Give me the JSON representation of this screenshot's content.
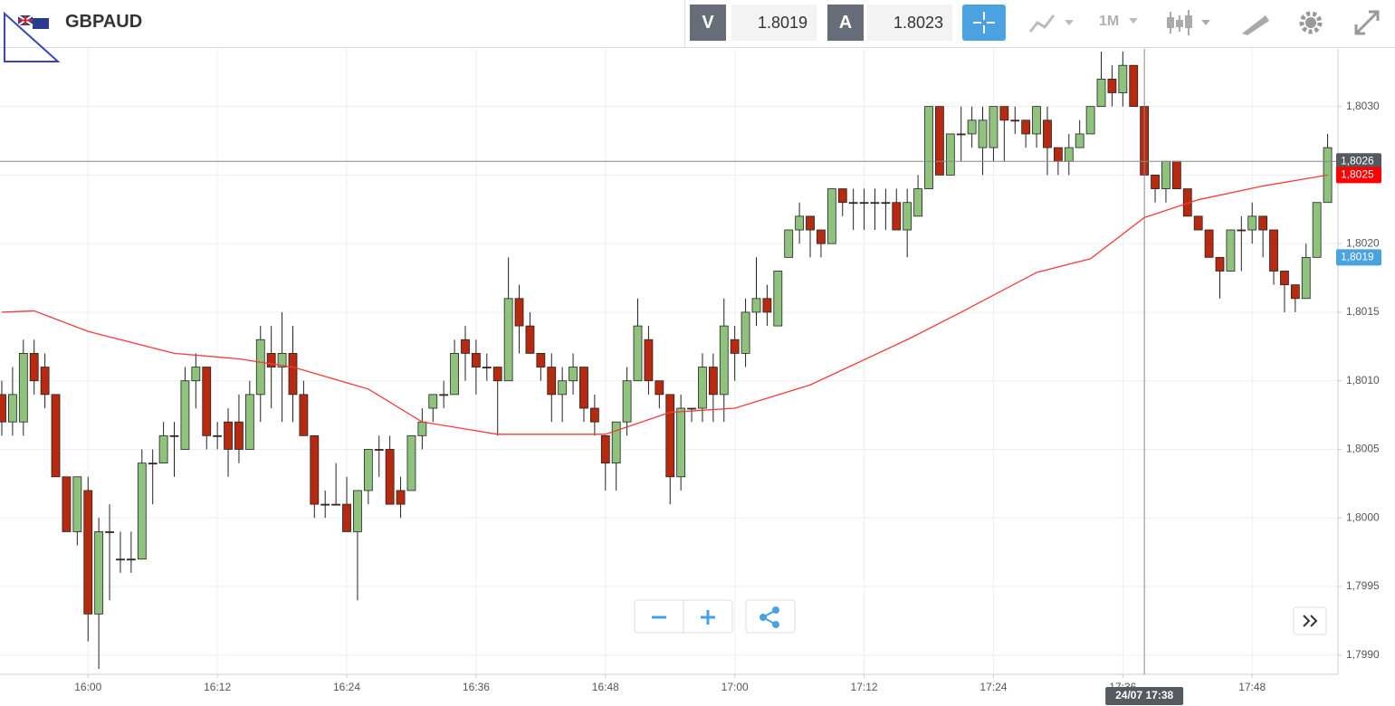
{
  "toolbar": {
    "symbol": "GBPAUD",
    "bid_tag": "V",
    "bid": 1.8019,
    "ask_tag": "A",
    "ask": 1.8023,
    "timeframe": "1M"
  },
  "chart_data": {
    "type": "candlestick",
    "x": [
      "15:52",
      "15:53",
      "15:54",
      "15:55",
      "15:56",
      "15:57",
      "15:58",
      "15:59",
      "16:00",
      "16:01",
      "16:02",
      "16:03",
      "16:04",
      "16:05",
      "16:06",
      "16:07",
      "16:08",
      "16:09",
      "16:10",
      "16:11",
      "16:12",
      "16:13",
      "16:14",
      "16:15",
      "16:16",
      "16:17",
      "16:18",
      "16:19",
      "16:20",
      "16:21",
      "16:22",
      "16:23",
      "16:24",
      "16:25",
      "16:26",
      "16:27",
      "16:28",
      "16:29",
      "16:30",
      "16:31",
      "16:32",
      "16:33",
      "16:34",
      "16:35",
      "16:36",
      "16:37",
      "16:38",
      "16:39",
      "16:40",
      "16:41",
      "16:42",
      "16:43",
      "16:44",
      "16:45",
      "16:46",
      "16:47",
      "16:48",
      "16:49",
      "16:50",
      "16:51",
      "16:52",
      "16:53",
      "16:54",
      "16:55",
      "16:56",
      "16:57",
      "16:58",
      "16:59",
      "17:00",
      "17:01",
      "17:02",
      "17:03",
      "17:04",
      "17:05",
      "17:06",
      "17:07",
      "17:08",
      "17:09",
      "17:10",
      "17:11",
      "17:12",
      "17:13",
      "17:14",
      "17:15",
      "17:16",
      "17:17",
      "17:18",
      "17:19",
      "17:20",
      "17:21",
      "17:22",
      "17:23",
      "17:24",
      "17:25",
      "17:26",
      "17:27",
      "17:28",
      "17:29",
      "17:30",
      "17:31",
      "17:32",
      "17:33",
      "17:34",
      "17:35",
      "17:36",
      "17:37",
      "17:38",
      "17:39",
      "17:40",
      "17:41",
      "17:42",
      "17:43",
      "17:44",
      "17:45",
      "17:46",
      "17:47",
      "17:48",
      "17:49",
      "17:50",
      "17:51",
      "17:52",
      "17:53",
      "17:54",
      "17:55"
    ],
    "open": [
      1.8009,
      1.8007,
      1.8007,
      1.8012,
      1.8011,
      1.8009,
      1.8003,
      1.7999,
      1.8002,
      1.7993,
      1.7999,
      1.7997,
      1.7997,
      1.7997,
      1.8004,
      1.8004,
      1.8006,
      1.8005,
      1.801,
      1.8011,
      1.8006,
      1.8007,
      1.8007,
      1.8005,
      1.8009,
      1.8012,
      1.8011,
      1.8012,
      1.8009,
      1.8006,
      1.8001,
      1.8001,
      1.8001,
      1.7999,
      1.8002,
      1.8005,
      1.8005,
      1.8002,
      1.8002,
      1.8006,
      1.8008,
      1.8009,
      1.8009,
      1.8013,
      1.8012,
      1.8011,
      1.8011,
      1.801,
      1.8016,
      1.8014,
      1.8012,
      1.8011,
      1.8009,
      1.801,
      1.8011,
      1.8008,
      1.8006,
      1.8004,
      1.8007,
      1.801,
      1.8013,
      1.801,
      1.8009,
      1.8003,
      1.8008,
      1.8008,
      1.8011,
      1.8009,
      1.8013,
      1.8012,
      1.8015,
      1.8016,
      1.8014,
      1.8019,
      1.8021,
      1.8022,
      1.8021,
      1.802,
      1.8024,
      1.8023,
      1.8023,
      1.8023,
      1.8023,
      1.8023,
      1.8021,
      1.8022,
      1.8024,
      1.803,
      1.8025,
      1.8028,
      1.8028,
      1.8027,
      1.8027,
      1.803,
      1.8029,
      1.8029,
      1.8028,
      1.8029,
      1.8027,
      1.8026,
      1.8027,
      1.8028,
      1.803,
      1.8032,
      1.8031,
      1.8033,
      1.803,
      1.8025,
      1.8024,
      1.8026,
      1.8024,
      1.8022,
      1.8021,
      1.8019,
      1.8018,
      1.8021,
      1.8021,
      1.8022,
      1.8021,
      1.8018,
      1.8017,
      1.8016,
      1.8019,
      1.8023
    ],
    "high": [
      1.801,
      1.8011,
      1.8013,
      1.8013,
      1.8012,
      1.8009,
      1.8003,
      1.8003,
      1.8003,
      1.8,
      1.8001,
      1.7999,
      1.7999,
      1.8005,
      1.8005,
      1.8007,
      1.8007,
      1.8011,
      1.8012,
      1.8011,
      1.8007,
      1.8008,
      1.8009,
      1.801,
      1.8014,
      1.8014,
      1.8015,
      1.8014,
      1.801,
      1.8006,
      1.8002,
      1.8004,
      1.8003,
      1.8002,
      1.8005,
      1.8006,
      1.8006,
      1.8003,
      1.8006,
      1.8008,
      1.8009,
      1.801,
      1.8013,
      1.8014,
      1.8013,
      1.8012,
      1.8011,
      1.8019,
      1.8017,
      1.8015,
      1.8012,
      1.8012,
      1.8011,
      1.8012,
      1.8011,
      1.8009,
      1.8006,
      1.8007,
      1.8011,
      1.8016,
      1.8014,
      1.801,
      1.8009,
      1.8009,
      1.8008,
      1.8012,
      1.8012,
      1.8016,
      1.8014,
      1.8016,
      1.8019,
      1.8017,
      1.8018,
      1.8021,
      1.8023,
      1.8022,
      1.8021,
      1.8024,
      1.8024,
      1.8024,
      1.8024,
      1.8024,
      1.8024,
      1.8024,
      1.8024,
      1.8025,
      1.803,
      1.803,
      1.8028,
      1.803,
      1.803,
      1.803,
      1.803,
      1.803,
      1.803,
      1.8029,
      1.803,
      1.803,
      1.8027,
      1.8028,
      1.8029,
      1.803,
      1.8034,
      1.8033,
      1.8034,
      1.8033,
      1.803,
      1.8025,
      1.8026,
      1.8026,
      1.8024,
      1.8022,
      1.8021,
      1.8019,
      1.8021,
      1.8022,
      1.8023,
      1.8022,
      1.8021,
      1.8018,
      1.8017,
      1.802,
      1.8023,
      1.8028
    ],
    "low": [
      1.8006,
      1.8006,
      1.8006,
      1.8009,
      1.8008,
      1.8003,
      1.7999,
      1.7998,
      1.7991,
      1.7989,
      1.7994,
      1.7996,
      1.7996,
      1.7997,
      1.8001,
      1.8004,
      1.8003,
      1.8005,
      1.8008,
      1.8005,
      1.8005,
      1.8003,
      1.8004,
      1.8005,
      1.8007,
      1.8008,
      1.8007,
      1.8007,
      1.8006,
      1.8,
      1.8,
      1.8001,
      1.7999,
      1.7994,
      1.8001,
      1.8003,
      1.8001,
      1.8,
      1.8002,
      1.8005,
      1.8007,
      1.8008,
      1.8009,
      1.801,
      1.8009,
      1.801,
      1.8006,
      1.801,
      1.8012,
      1.8012,
      1.801,
      1.8007,
      1.8007,
      1.8009,
      1.8007,
      1.8006,
      1.8002,
      1.8002,
      1.8006,
      1.801,
      1.8009,
      1.8008,
      1.8001,
      1.8002,
      1.8007,
      1.8007,
      1.8007,
      1.8007,
      1.801,
      1.8011,
      1.8014,
      1.8014,
      1.8014,
      1.8019,
      1.802,
      1.8019,
      1.8019,
      1.802,
      1.8022,
      1.8021,
      1.8021,
      1.8021,
      1.8021,
      1.8021,
      1.8019,
      1.8022,
      1.8024,
      1.8025,
      1.8025,
      1.8026,
      1.8027,
      1.8025,
      1.8026,
      1.8026,
      1.8028,
      1.8027,
      1.8027,
      1.8025,
      1.8025,
      1.8025,
      1.8027,
      1.8028,
      1.803,
      1.803,
      1.803,
      1.803,
      1.8025,
      1.8023,
      1.8023,
      1.8024,
      1.8022,
      1.8021,
      1.8019,
      1.8016,
      1.8018,
      1.8018,
      1.802,
      1.8019,
      1.8017,
      1.8015,
      1.8015,
      1.8016,
      1.8019,
      1.8023
    ],
    "close": [
      1.8007,
      1.8009,
      1.8012,
      1.801,
      1.8009,
      1.8003,
      1.7999,
      1.8003,
      1.7993,
      1.7999,
      1.7999,
      1.7997,
      1.7997,
      1.8004,
      1.8004,
      1.8006,
      1.8006,
      1.801,
      1.8011,
      1.8006,
      1.8006,
      1.8005,
      1.8005,
      1.8009,
      1.8013,
      1.8011,
      1.8012,
      1.8009,
      1.8006,
      1.8001,
      1.8001,
      1.8001,
      1.7999,
      1.8002,
      1.8005,
      1.8005,
      1.8001,
      1.8001,
      1.8006,
      1.8007,
      1.8009,
      1.8009,
      1.8012,
      1.8012,
      1.8011,
      1.8011,
      1.801,
      1.8016,
      1.8014,
      1.8012,
      1.8011,
      1.8009,
      1.801,
      1.8011,
      1.8008,
      1.8007,
      1.8004,
      1.8007,
      1.801,
      1.8014,
      1.801,
      1.8009,
      1.8003,
      1.8008,
      1.8008,
      1.8011,
      1.8009,
      1.8014,
      1.8012,
      1.8015,
      1.8016,
      1.8015,
      1.8018,
      1.8021,
      1.8022,
      1.8021,
      1.802,
      1.8024,
      1.8023,
      1.8023,
      1.8023,
      1.8023,
      1.8023,
      1.8021,
      1.8023,
      1.8024,
      1.803,
      1.8025,
      1.8028,
      1.8028,
      1.8029,
      1.8029,
      1.803,
      1.8029,
      1.8029,
      1.8028,
      1.803,
      1.8027,
      1.8026,
      1.8027,
      1.8028,
      1.803,
      1.8032,
      1.8031,
      1.8033,
      1.803,
      1.8025,
      1.8024,
      1.8026,
      1.8024,
      1.8022,
      1.8021,
      1.8019,
      1.8018,
      1.8021,
      1.8021,
      1.8022,
      1.8021,
      1.8018,
      1.8017,
      1.8016,
      1.8019,
      1.8023,
      1.8027
    ],
    "up_color": "#8fc27c",
    "down_color": "#b82a10",
    "moving_average": {
      "color": "#f03c3c",
      "x": [
        "15:52",
        "15:55",
        "16:00",
        "16:08",
        "16:14",
        "16:19",
        "16:26",
        "16:31",
        "16:38",
        "16:48",
        "16:54",
        "17:00",
        "17:07",
        "17:16",
        "17:21",
        "17:28",
        "17:33",
        "17:38",
        "17:43",
        "17:49",
        "17:55"
      ],
      "values": [
        1.8015,
        1.80151,
        1.80136,
        1.8012,
        1.80116,
        1.8011,
        1.80094,
        1.8007,
        1.80061,
        1.80061,
        1.80077,
        1.8008,
        1.80097,
        1.8013,
        1.8015,
        1.80179,
        1.80189,
        1.80219,
        1.80232,
        1.80242,
        1.8025
      ]
    },
    "ylim": [
      1.79886,
      1.80342
    ],
    "yticks": [
      {
        "value": 1.799,
        "label": "1,7990"
      },
      {
        "value": 1.7995,
        "label": "1,7995"
      },
      {
        "value": 1.8,
        "label": "1,8000"
      },
      {
        "value": 1.8005,
        "label": "1,8005"
      },
      {
        "value": 1.801,
        "label": "1,8010"
      },
      {
        "value": 1.8015,
        "label": "1,8015"
      },
      {
        "value": 1.802,
        "label": "1,8020"
      },
      {
        "value": 1.8025,
        "label": "1,8025"
      },
      {
        "value": 1.803,
        "label": "1,8030"
      }
    ],
    "xticks": [
      "16:00",
      "16:12",
      "16:24",
      "16:36",
      "16:48",
      "17:00",
      "17:12",
      "17:24",
      "17:36",
      "17:48"
    ],
    "grid": true,
    "price_labels": [
      {
        "value": 1.8026,
        "label": "1,8026",
        "color": "#555a60"
      },
      {
        "value": 1.8025,
        "label": "1,8025",
        "color": "#ff0000"
      },
      {
        "value": 1.8019,
        "label": "1,8019",
        "color": "#4aa3e0"
      }
    ],
    "crosshair": {
      "x": "17:38",
      "y": 1.8026,
      "x_label": "24/07 17:38"
    }
  }
}
